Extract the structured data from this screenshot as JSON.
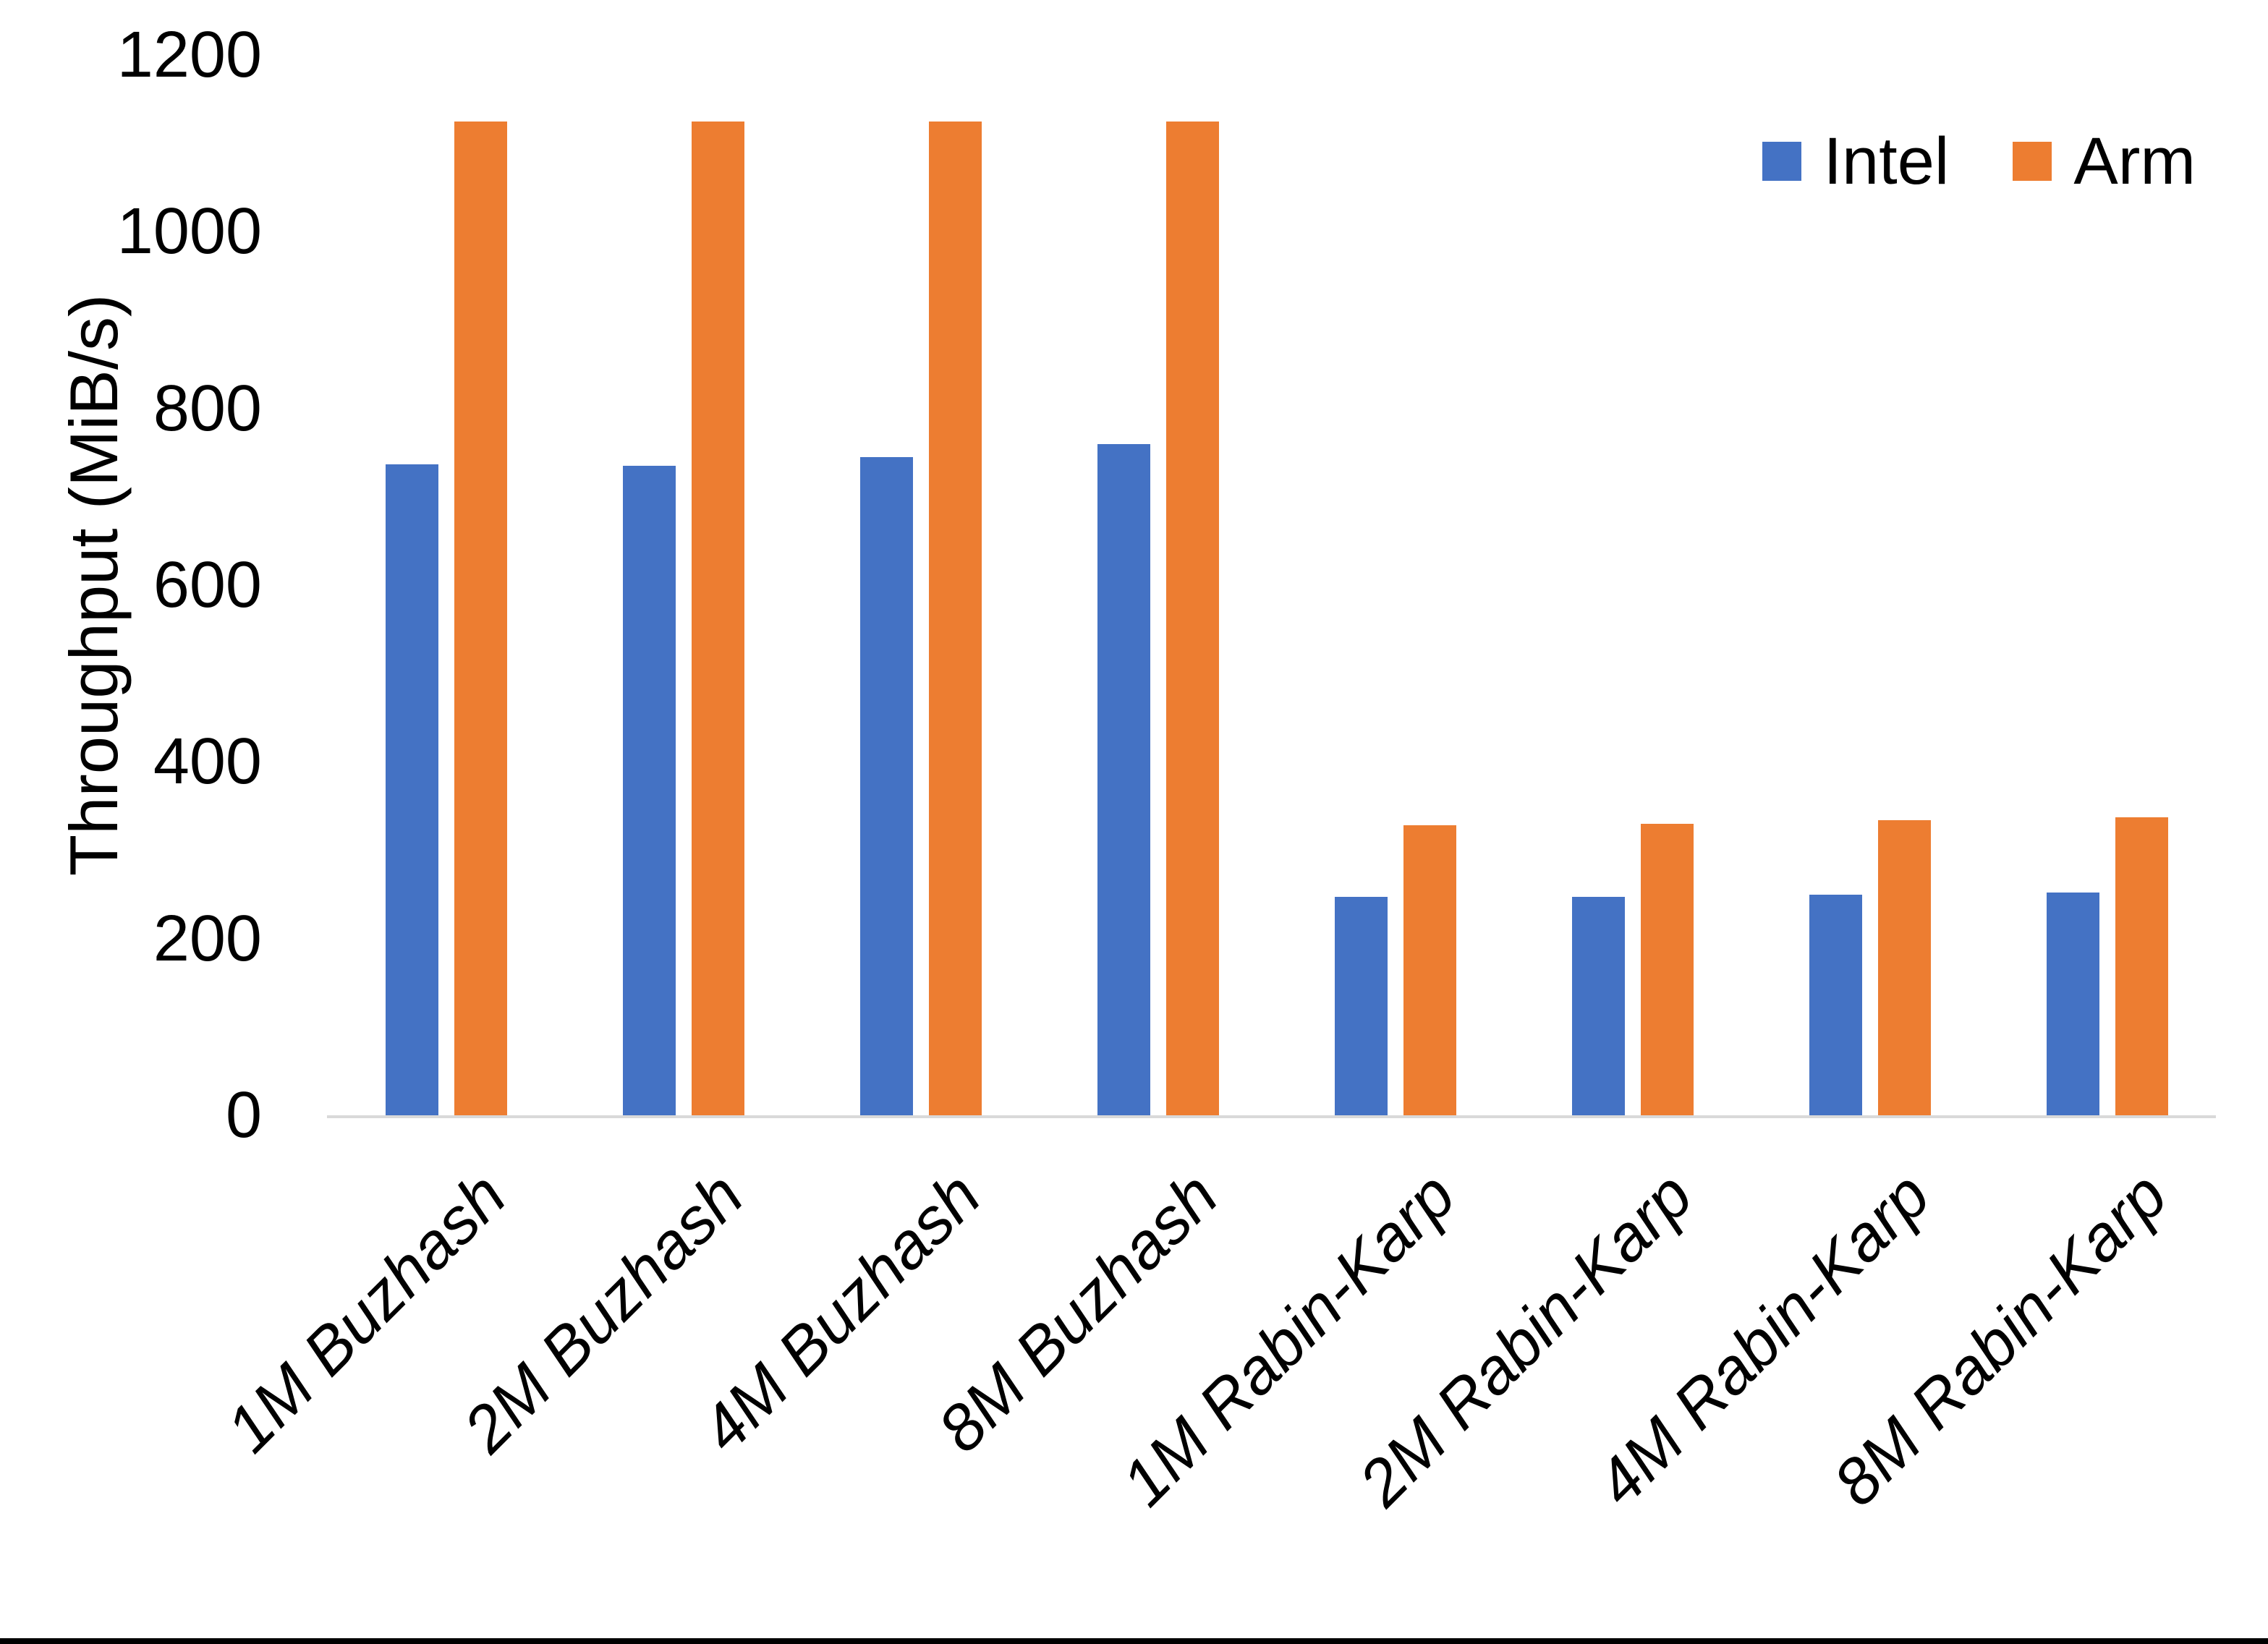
{
  "chart_data": {
    "type": "bar",
    "title": "",
    "xlabel": "",
    "ylabel": "Throughput (MiB/s)",
    "ylim": [
      0,
      1200
    ],
    "yticks": [
      0,
      200,
      400,
      600,
      800,
      1000,
      1200
    ],
    "grid": false,
    "legend_position": "top-right",
    "categories": [
      "1M Buzhash",
      "2M Buzhash",
      "4M Buzhash",
      "8M Buzhash",
      "1M Rabin-Karp",
      "2M Rabin-Karp",
      "4M Rabin-Karp",
      "8M Rabin-Karp"
    ],
    "series": [
      {
        "name": "Intel",
        "color": "#4472C4",
        "values": [
          737,
          735,
          745,
          760,
          247,
          247,
          250,
          252
        ]
      },
      {
        "name": "Arm",
        "color": "#ED7D31",
        "values": [
          1125,
          1125,
          1125,
          1125,
          328,
          330,
          334,
          337
        ]
      }
    ]
  },
  "colors": {
    "background": "#FFFFFF",
    "axis_line": "#D9D9D9",
    "text": "#000000",
    "bottom_strip": "#000000"
  }
}
